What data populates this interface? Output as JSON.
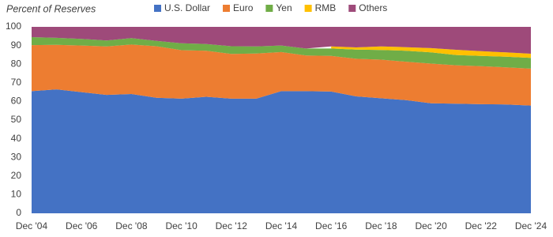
{
  "chart_data": {
    "type": "stacked-area",
    "subtitle": "Percent of Reserves",
    "categories": [
      "Dec '04",
      null,
      "Dec '06",
      null,
      "Dec '08",
      null,
      "Dec '10",
      null,
      "Dec '12",
      null,
      "Dec '14",
      null,
      "Dec '16",
      null,
      "Dec '18",
      null,
      "Dec '20",
      null,
      "Dec '22",
      null,
      "Dec '24"
    ],
    "series": [
      {
        "name": "U.S. Dollar",
        "color": "#4472c4",
        "values": [
          65.5,
          66.5,
          65,
          63.5,
          64,
          62,
          61.5,
          62.5,
          61.5,
          61.5,
          65.5,
          65.5,
          65.3,
          62.7,
          61.7,
          60.7,
          59,
          58.8,
          58.5,
          58.4,
          57.8
        ]
      },
      {
        "name": "Euro",
        "color": "#ed7d31",
        "values": [
          24.7,
          23.9,
          25,
          26,
          26.5,
          27.6,
          26,
          24.7,
          24,
          24.2,
          21,
          19.1,
          19.1,
          20.2,
          20.7,
          20.6,
          21.3,
          20.6,
          20.4,
          19.9,
          19.8
        ]
      },
      {
        "name": "Yen",
        "color": "#70ad47",
        "values": [
          4.3,
          3.7,
          3.5,
          3.2,
          3.5,
          2.9,
          3.7,
          3.6,
          4.1,
          3.8,
          3.5,
          3.8,
          4,
          4.9,
          5.2,
          5.9,
          6,
          5.5,
          5.5,
          5.7,
          5.8
        ]
      },
      {
        "name": "RMB",
        "color": "#ffc000",
        "values": [
          null,
          null,
          null,
          null,
          null,
          null,
          null,
          null,
          null,
          null,
          null,
          null,
          1.1,
          1.2,
          1.9,
          1.9,
          2.3,
          2.8,
          2.6,
          2.3,
          2.2
        ]
      },
      {
        "name": "Others",
        "color": "#9e4a7a",
        "values": [
          5.5,
          5.9,
          6.5,
          7.3,
          6,
          7.5,
          8.8,
          9.2,
          10.4,
          10.5,
          10,
          11.6,
          10.5,
          11,
          10.5,
          10.9,
          11.4,
          12.3,
          13,
          13.7,
          14.4
        ]
      }
    ],
    "ylim": [
      0,
      100
    ],
    "yticks": [
      0,
      10,
      20,
      30,
      40,
      50,
      60,
      70,
      80,
      90,
      100
    ],
    "grid": false
  }
}
